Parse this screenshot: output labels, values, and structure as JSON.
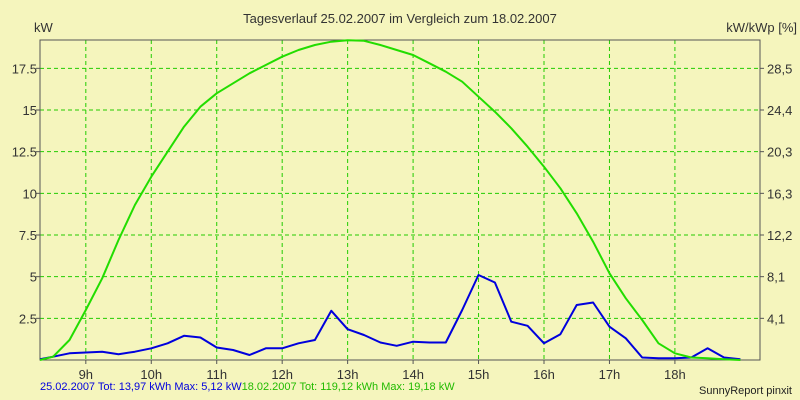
{
  "chart_data": {
    "type": "line",
    "title": "Tagesverlauf 25.02.2007 im Vergleich zum 18.02.2007",
    "ylabel_left": "kW",
    "ylabel_right": "kW/kWp [%]",
    "x_ticks": [
      "9h",
      "10h",
      "11h",
      "12h",
      "13h",
      "14h",
      "15h",
      "16h",
      "17h",
      "18h"
    ],
    "xlim": [
      8.3,
      19.3
    ],
    "ylim": [
      0,
      19.2
    ],
    "y_ticks_left": [
      "2.5",
      "5",
      "7.5",
      "10",
      "12.5",
      "15",
      "17.5"
    ],
    "y_ticks_right": [
      "4,1",
      "8,1",
      "12,2",
      "16,3",
      "20,3",
      "24,4",
      "28,5"
    ],
    "grid": true,
    "series": [
      {
        "name": "25.02.2007",
        "color": "#0000dd",
        "x": [
          8.3,
          8.5,
          8.75,
          9.0,
          9.25,
          9.5,
          9.75,
          10.0,
          10.25,
          10.5,
          10.75,
          11.0,
          11.25,
          11.5,
          11.75,
          12.0,
          12.25,
          12.5,
          12.75,
          13.0,
          13.25,
          13.5,
          13.75,
          14.0,
          14.25,
          14.5,
          14.75,
          15.0,
          15.25,
          15.5,
          15.75,
          16.0,
          16.25,
          16.5,
          16.75,
          17.0,
          17.25,
          17.5,
          17.75,
          18.0,
          18.25,
          18.5,
          18.75,
          19.0
        ],
        "y": [
          0.05,
          0.2,
          0.4,
          0.45,
          0.5,
          0.35,
          0.5,
          0.7,
          1.0,
          1.45,
          1.35,
          0.75,
          0.6,
          0.3,
          0.7,
          0.7,
          1.0,
          1.2,
          2.95,
          1.85,
          1.5,
          1.05,
          0.85,
          1.1,
          1.05,
          1.05,
          3.0,
          5.1,
          4.65,
          2.3,
          2.05,
          1.0,
          1.55,
          3.3,
          3.45,
          2.0,
          1.3,
          0.15,
          0.1,
          0.1,
          0.15,
          0.7,
          0.15,
          0.05
        ]
      },
      {
        "name": "18.02.2007",
        "color": "#22dd00",
        "x": [
          8.3,
          8.5,
          8.75,
          9.0,
          9.25,
          9.5,
          9.75,
          10.0,
          10.25,
          10.5,
          10.75,
          11.0,
          11.25,
          11.5,
          11.75,
          12.0,
          12.25,
          12.5,
          12.75,
          13.0,
          13.25,
          13.5,
          13.75,
          14.0,
          14.25,
          14.5,
          14.75,
          15.0,
          15.25,
          15.5,
          15.75,
          16.0,
          16.25,
          16.5,
          16.75,
          17.0,
          17.25,
          17.5,
          17.75,
          18.0,
          18.25,
          18.5,
          18.75,
          19.0
        ],
        "y": [
          0.0,
          0.2,
          1.2,
          3.0,
          4.9,
          7.2,
          9.3,
          11.0,
          12.5,
          14.0,
          15.2,
          16.0,
          16.6,
          17.2,
          17.7,
          18.2,
          18.6,
          18.9,
          19.1,
          19.18,
          19.15,
          18.9,
          18.6,
          18.3,
          17.8,
          17.3,
          16.7,
          15.8,
          14.9,
          13.9,
          12.8,
          11.6,
          10.3,
          8.8,
          7.1,
          5.2,
          3.7,
          2.4,
          1.0,
          0.4,
          0.15,
          0.1,
          0.05,
          0.0
        ]
      }
    ]
  },
  "footer": {
    "series1_text": "25.02.2007 Tot: 13,97 kWh Max: 5,12 kW",
    "series2_text": "18.02.2007 Tot: 119,12 kWh Max: 19,18 kW",
    "credit": "SunnyReport pinxit"
  },
  "colors": {
    "background": "#f5f5bd",
    "grid": "#22cc00",
    "axis": "#555555",
    "series1": "#0000dd",
    "series2": "#22dd00"
  }
}
